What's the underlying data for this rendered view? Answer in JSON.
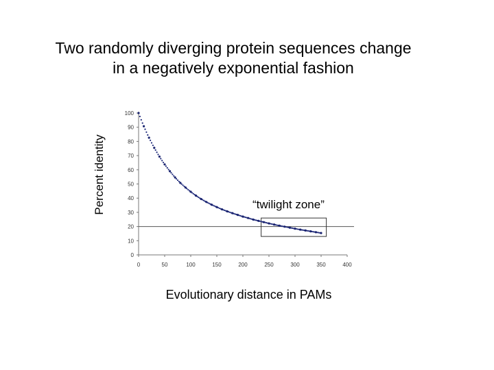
{
  "chart_data": {
    "type": "scatter",
    "title_lines": [
      "Two randomly diverging protein sequences change",
      "in a negatively exponential fashion"
    ],
    "xlabel": "Evolutionary distance in PAMs",
    "ylabel": "Percent identity",
    "xlim": [
      0,
      400
    ],
    "ylim": [
      0,
      100
    ],
    "xticks": [
      0,
      50,
      100,
      150,
      200,
      250,
      300,
      350,
      400
    ],
    "yticks": [
      0,
      10,
      20,
      30,
      40,
      50,
      60,
      70,
      80,
      90,
      100
    ],
    "grid": false,
    "reference_line": {
      "y": 20
    },
    "annotation": {
      "text": "“twilight zone”",
      "box_x_range": [
        235,
        360
      ],
      "box_y_range": [
        13,
        26
      ]
    },
    "series": [
      {
        "name": "Percent identity",
        "x": [
          0,
          10,
          20,
          30,
          40,
          50,
          60,
          70,
          80,
          90,
          100,
          110,
          120,
          130,
          140,
          150,
          160,
          170,
          180,
          190,
          200,
          210,
          220,
          230,
          240,
          250,
          260,
          270,
          280,
          290,
          300,
          310,
          320,
          330,
          340,
          350
        ],
        "y": [
          100,
          90.7,
          82.6,
          75.5,
          69.3,
          63.8,
          59.0,
          54.6,
          50.8,
          47.5,
          44.5,
          41.8,
          39.4,
          37.3,
          35.4,
          33.7,
          32.1,
          30.7,
          29.4,
          28.2,
          27.0,
          26.0,
          24.9,
          24.0,
          23.1,
          22.2,
          21.4,
          20.6,
          19.9,
          19.2,
          18.5,
          17.8,
          17.2,
          16.6,
          16.0,
          15.4
        ]
      }
    ]
  }
}
